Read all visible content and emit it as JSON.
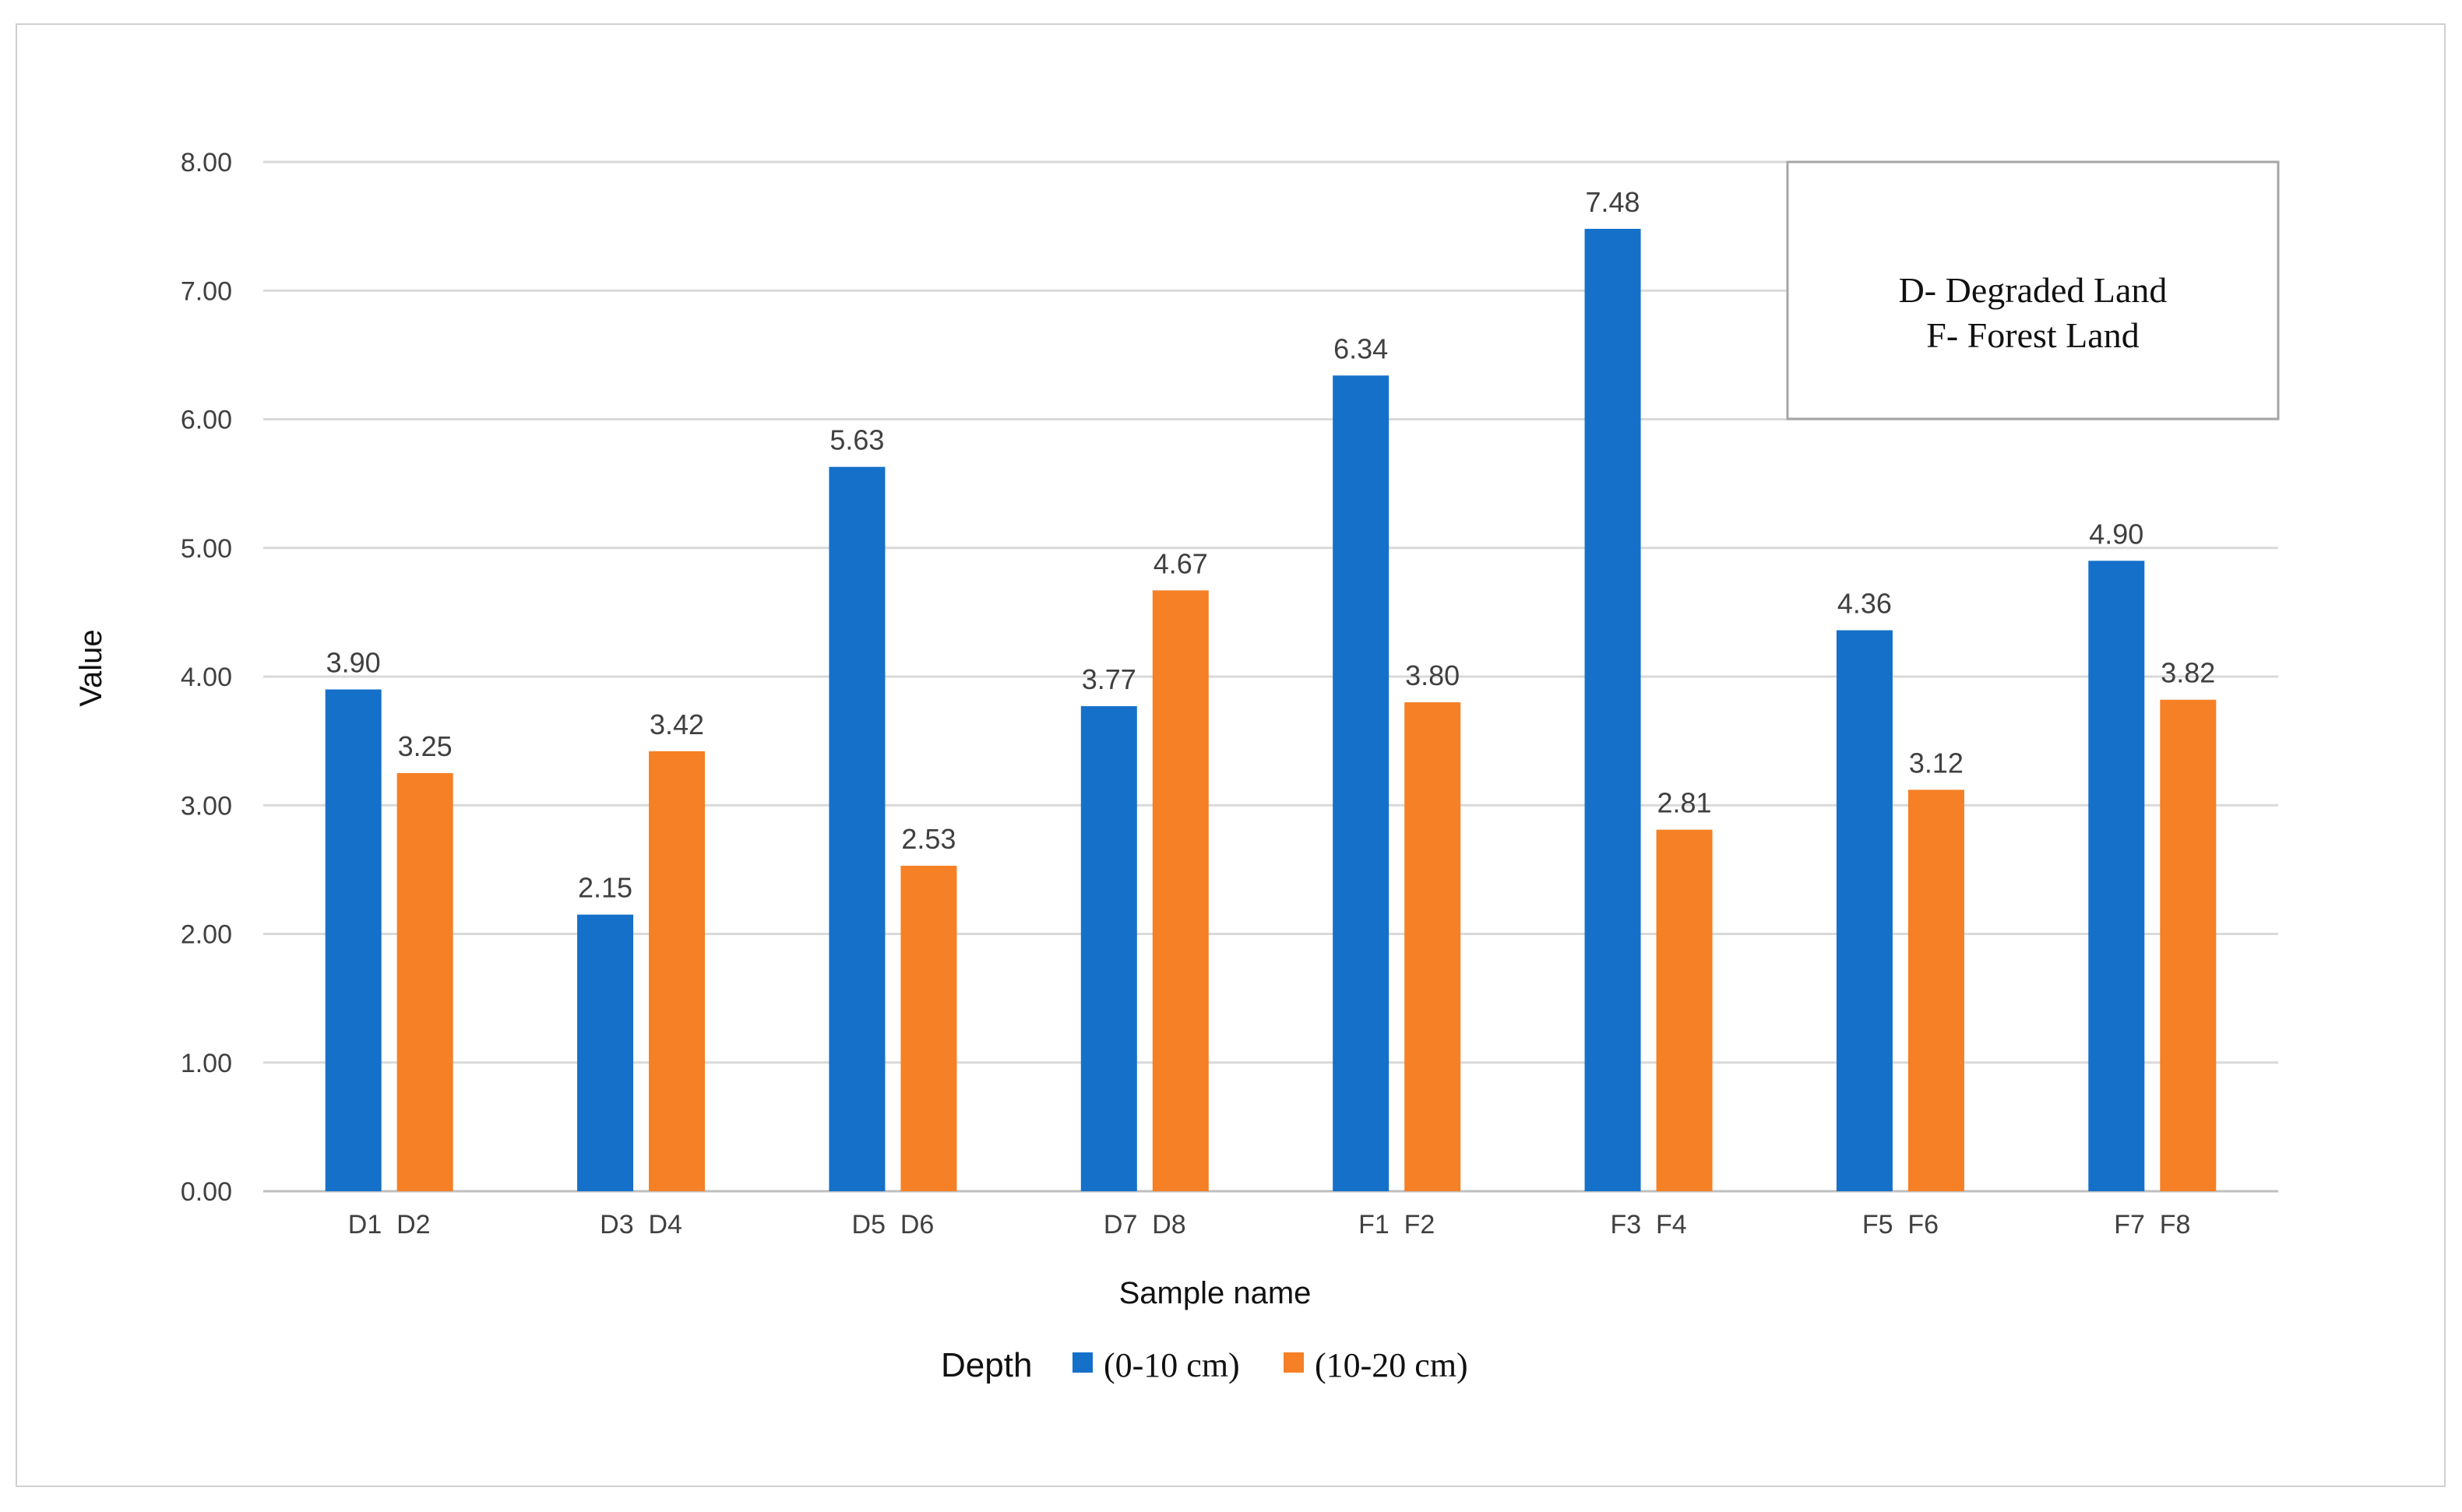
{
  "chart_data": {
    "type": "bar",
    "title": "",
    "xlabel": "Sample name",
    "ylabel": "Value",
    "ylim": [
      0,
      8
    ],
    "yticks": [
      "0.00",
      "1.00",
      "2.00",
      "3.00",
      "4.00",
      "5.00",
      "6.00",
      "7.00",
      "8.00"
    ],
    "grid": true,
    "legend_position": "bottom",
    "legend_title": "Depth",
    "categories": [
      "D1  D2",
      "D3  D4",
      "D5  D6",
      "D7  D8",
      "F1  F2",
      "F3  F4",
      "F5  F6",
      "F7  F8"
    ],
    "series": [
      {
        "name": "(0-10 cm)",
        "color": "#1570c9",
        "values": [
          3.9,
          2.15,
          5.63,
          3.77,
          6.34,
          7.48,
          4.36,
          4.9
        ],
        "labels": [
          "3.90",
          "2.15",
          "5.63",
          "3.77",
          "6.34",
          "7.48",
          "4.36",
          "4.90"
        ]
      },
      {
        "name": "(10-20 cm)",
        "color": "#f58025",
        "values": [
          3.25,
          3.42,
          2.53,
          4.67,
          3.8,
          2.81,
          3.12,
          3.82
        ],
        "labels": [
          "3.25",
          "3.42",
          "2.53",
          "4.67",
          "3.80",
          "2.81",
          "3.12",
          "3.82"
        ]
      }
    ],
    "annotation": [
      "D- Degraded Land",
      "F- Forest Land"
    ]
  }
}
